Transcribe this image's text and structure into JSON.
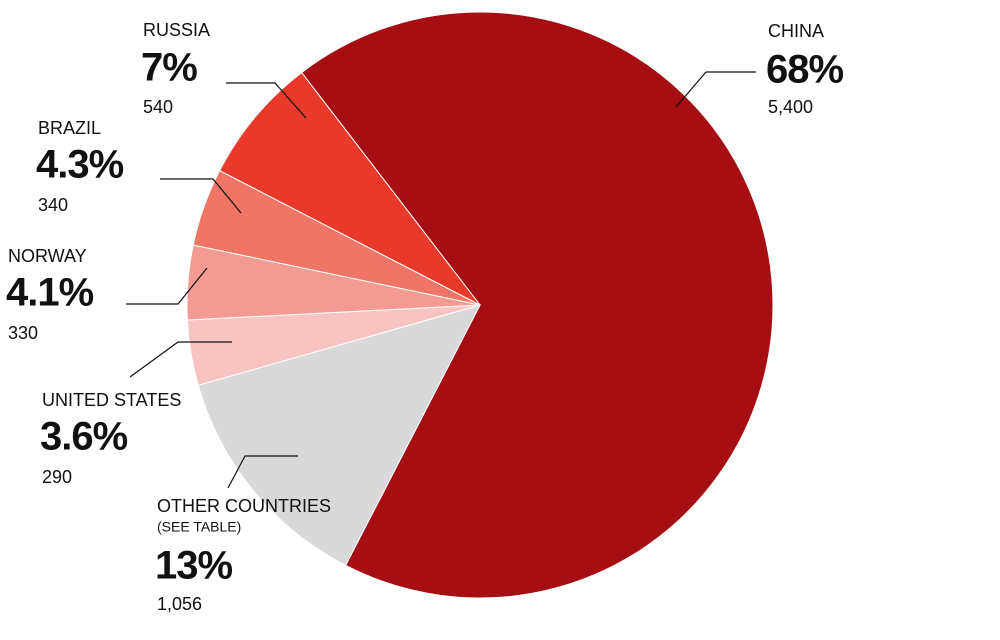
{
  "chart_data": {
    "type": "pie",
    "categories": [
      "CHINA",
      "OTHER COUNTRIES",
      "UNITED STATES",
      "NORWAY",
      "BRAZIL",
      "RUSSIA"
    ],
    "values": [
      68,
      13,
      3.6,
      4.1,
      4.3,
      7
    ],
    "value_labels": [
      "68%",
      "13%",
      "3.6%",
      "4.1%",
      "4.3%",
      "7%"
    ],
    "counts": [
      {
        "value": 5400,
        "label": "5,400"
      },
      {
        "value": 1056,
        "label": "1,056"
      },
      290,
      330,
      340,
      540
    ],
    "annotation": "(SEE TABLE)",
    "colors": [
      "#a50e13",
      "#d9d9d9",
      "#f9c3c0",
      "#f39b92",
      "#ef7565",
      "#e8392a"
    ]
  }
}
